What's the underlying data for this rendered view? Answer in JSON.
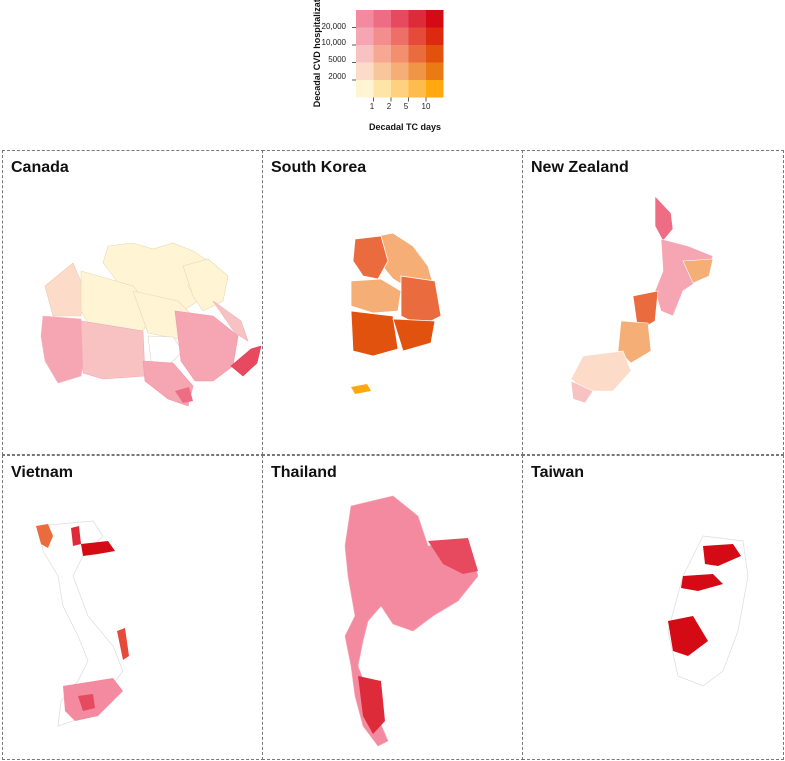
{
  "legend": {
    "y_title": "Decadal CVD hospitalizations",
    "x_title": "Decadal TC days",
    "y_labels": [
      "20,000",
      "10,000",
      "5000",
      "2000"
    ],
    "x_labels": [
      "1",
      "2",
      "5",
      "10"
    ],
    "grid_colors": [
      [
        "#f48aa0",
        "#ee6d84",
        "#e74a5e",
        "#dd2b3a",
        "#d40a14"
      ],
      [
        "#f6a6b2",
        "#f38e8e",
        "#ee6e68",
        "#e54a3a",
        "#dc2a10"
      ],
      [
        "#f8c2c2",
        "#f6a893",
        "#f2906e",
        "#ea6c3e",
        "#e2520f"
      ],
      [
        "#fcdcc8",
        "#f9c69c",
        "#f5ae76",
        "#f09446",
        "#ea7a12"
      ],
      [
        "#fff4d4",
        "#ffe4a8",
        "#ffd07e",
        "#ffbc4e",
        "#ffa810"
      ]
    ]
  },
  "panels": [
    {
      "id": "canada",
      "title": "Canada"
    },
    {
      "id": "south-korea",
      "title": "South Korea"
    },
    {
      "id": "new-zealand",
      "title": "New Zealand"
    },
    {
      "id": "vietnam",
      "title": "Vietnam"
    },
    {
      "id": "thailand",
      "title": "Thailand"
    },
    {
      "id": "taiwan",
      "title": "Taiwan"
    }
  ]
}
